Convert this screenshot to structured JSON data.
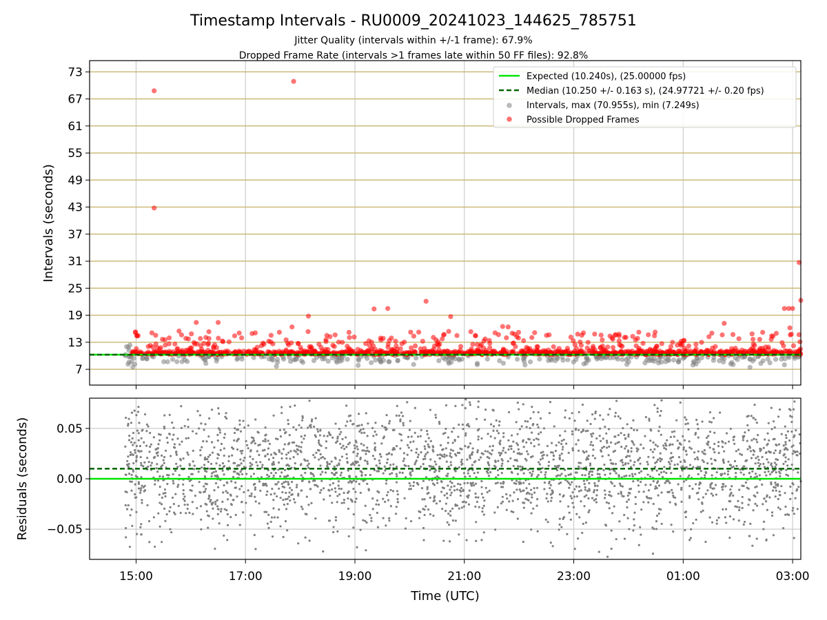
{
  "chart_data": [
    {
      "type": "scatter",
      "title": "Timestamp Intervals - RU0009_20241023_144625_785751",
      "subtitle_1": "Jitter Quality (intervals within +/-1 frame): 67.9%",
      "subtitle_2": "Dropped Frame Rate (intervals >1 frames late within 50 FF files): 92.8%",
      "xlabel": "",
      "ylabel": "Intervals (seconds)",
      "xlim_hours": [
        14.15,
        27.15
      ],
      "ylim": [
        3.5,
        75.5
      ],
      "y_ticks": [
        "73",
        "67",
        "61",
        "55",
        "49",
        "43",
        "37",
        "31",
        "25",
        "19",
        "13",
        "7"
      ],
      "y_tick_values": [
        73,
        67,
        61,
        55,
        49,
        43,
        37,
        31,
        25,
        19,
        13,
        7
      ],
      "grid": true,
      "horizontal_grid_color": "#c8b46e",
      "legend_position": "top-right",
      "legend": [
        "Expected (10.240s), (25.00000 fps)",
        "Median (10.250 +/- 0.163 s), (24.97721 +/- 0.20 fps)",
        "Intervals, max (70.955s), min (7.249s)",
        "Possible Dropped Frames"
      ],
      "expected_interval": 10.24,
      "median_interval": 10.25,
      "series": [
        {
          "name": "Expected (10.240s), (25.00000 fps)",
          "kind": "line",
          "value": 10.24,
          "color": "#00e600"
        },
        {
          "name": "Median (10.250 +/- 0.163 s), (24.97721 +/- 0.20 fps)",
          "kind": "dashed-line",
          "value": 10.25,
          "color": "#006400"
        },
        {
          "name": "Intervals, max (70.955s), min (7.249s)",
          "kind": "scatter",
          "color": "#808080",
          "max": 70.955,
          "min": 7.249,
          "x_range_hours": [
            14.8,
            27.15
          ],
          "typical": 10.24
        },
        {
          "name": "Possible Dropped Frames",
          "kind": "scatter",
          "color": "#ff0000",
          "outliers": [
            {
              "x": 15.33,
              "y": 68.8
            },
            {
              "x": 15.33,
              "y": 42.8
            },
            {
              "x": 17.88,
              "y": 70.9
            },
            {
              "x": 27.12,
              "y": 30.7
            },
            {
              "x": 27.15,
              "y": 22.3
            },
            {
              "x": 20.3,
              "y": 22.1
            },
            {
              "x": 19.35,
              "y": 20.4
            },
            {
              "x": 19.6,
              "y": 20.5
            },
            {
              "x": 26.85,
              "y": 20.5
            },
            {
              "x": 26.93,
              "y": 20.5
            },
            {
              "x": 27.0,
              "y": 20.5
            },
            {
              "x": 18.15,
              "y": 18.8
            },
            {
              "x": 20.75,
              "y": 18.7
            },
            {
              "x": 16.1,
              "y": 17.4
            },
            {
              "x": 16.5,
              "y": 17.4
            },
            {
              "x": 25.75,
              "y": 17.2
            },
            {
              "x": 17.85,
              "y": 16.4
            },
            {
              "x": 21.7,
              "y": 16.5
            },
            {
              "x": 21.8,
              "y": 16.4
            },
            {
              "x": 26.95,
              "y": 16.2
            }
          ]
        }
      ]
    },
    {
      "type": "scatter",
      "title": "",
      "xlabel": "Time (UTC)",
      "ylabel": "Residuals (seconds)",
      "xlim_hours": [
        14.15,
        27.15
      ],
      "ylim": [
        -0.08,
        0.08
      ],
      "x_ticks": [
        "15:00",
        "17:00",
        "19:00",
        "21:00",
        "23:00",
        "01:00",
        "03:00"
      ],
      "x_tick_hours": [
        15,
        17,
        19,
        21,
        23,
        25,
        27
      ],
      "y_ticks": [
        "0.05",
        "0.00",
        "−0.05"
      ],
      "y_tick_values": [
        0.05,
        0.0,
        -0.05
      ],
      "grid": true,
      "series": [
        {
          "name": "",
          "kind": "line",
          "value": 0.0,
          "color": "#00e600"
        },
        {
          "name": "",
          "kind": "dashed-line",
          "value": 0.01,
          "color": "#006400"
        },
        {
          "name": "",
          "kind": "scatter",
          "color": "#808080",
          "x_range_hours": [
            14.8,
            27.15
          ],
          "center": 0.01,
          "spread": 0.03
        }
      ]
    }
  ]
}
